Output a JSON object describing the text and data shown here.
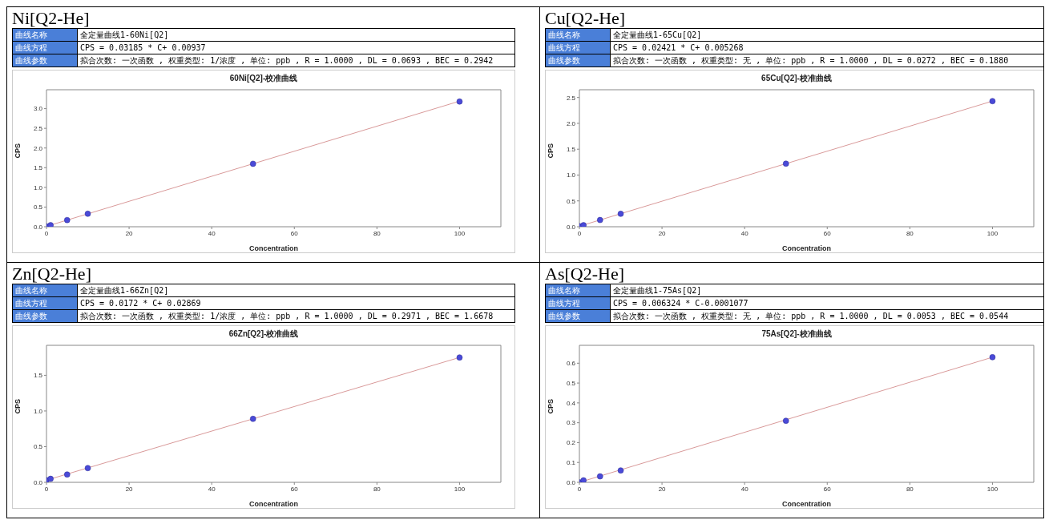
{
  "chart_data": [
    {
      "type": "scatter",
      "title": "60Ni[Q2]-校准曲线",
      "xlabel": "Concentration",
      "ylabel": "CPS",
      "annotations": [
        "Ni[Q2-He]",
        "曲线名称",
        "全定量曲线1-60Ni[Q2]",
        "曲线方程",
        "CPS = 0.03185 * C+ 0.00937",
        "曲线参数",
        "拟合次数: 一次函数 , 权重类型: 1/浓度 , 单位: ppb , R = 1.0000 , DL = 0.0693 , BEC = 0.2942"
      ],
      "xlim": [
        0,
        110
      ],
      "xticks": [
        0,
        20,
        40,
        60,
        80,
        100
      ],
      "ylim": [
        0,
        3.48
      ],
      "yticks": [
        {
          "value": 0,
          "label": "0.0"
        },
        {
          "value": 0.5,
          "label": "0.5"
        },
        {
          "value": 1,
          "label": "1.0"
        },
        {
          "value": 1.5,
          "label": "1.5"
        },
        {
          "value": 2,
          "label": "2.0"
        },
        {
          "value": 2.5,
          "label": "2.5"
        },
        {
          "value": 3,
          "label": "3.0"
        }
      ],
      "grid": false,
      "legend": false,
      "series": [
        {
          "type": "line",
          "color": "#d99a9a",
          "x": [
            0,
            100
          ],
          "values": [
            0.01,
            3.19
          ]
        },
        {
          "marker": "circle",
          "color": "#4a4ad8",
          "x": [
            0,
            1,
            5,
            10,
            50,
            100
          ],
          "values": [
            0.01,
            0.04,
            0.17,
            0.33,
            1.6,
            3.18
          ]
        }
      ]
    },
    {
      "type": "scatter",
      "title": "65Cu[Q2]-校准曲线",
      "xlabel": "Concentration",
      "ylabel": "CPS",
      "annotations": [
        "Cu[Q2-He]",
        "曲线名称",
        "全定量曲线1-65Cu[Q2]",
        "曲线方程",
        "CPS = 0.02421 * C+ 0.005268",
        "曲线参数",
        "拟合次数: 一次函数 , 权重类型: 无 , 单位: ppb , R = 1.0000 , DL = 0.0272 , BEC = 0.1880"
      ],
      "xlim": [
        0,
        110
      ],
      "xticks": [
        0,
        20,
        40,
        60,
        80,
        100
      ],
      "ylim": [
        0,
        2.65
      ],
      "yticks": [
        {
          "value": 0,
          "label": "0.0"
        },
        {
          "value": 0.5,
          "label": "0.5"
        },
        {
          "value": 1,
          "label": "1.0"
        },
        {
          "value": 1.5,
          "label": "1.5"
        },
        {
          "value": 2,
          "label": "2.0"
        },
        {
          "value": 2.5,
          "label": "2.5"
        }
      ],
      "grid": false,
      "legend": false,
      "series": [
        {
          "type": "line",
          "color": "#d99a9a",
          "x": [
            0,
            100
          ],
          "values": [
            0.01,
            2.43
          ]
        },
        {
          "marker": "circle",
          "color": "#4a4ad8",
          "x": [
            0,
            1,
            5,
            10,
            50,
            100
          ],
          "values": [
            0.01,
            0.03,
            0.13,
            0.25,
            1.22,
            2.43
          ]
        }
      ]
    },
    {
      "type": "scatter",
      "title": "66Zn[Q2]-校准曲线",
      "xlabel": "Concentration",
      "ylabel": "CPS",
      "annotations": [
        "Zn[Q2-He]",
        "曲线名称",
        "全定量曲线1-66Zn[Q2]",
        "曲线方程",
        "CPS = 0.0172 * C+ 0.02869",
        "曲线参数",
        "拟合次数: 一次函数 , 权重类型: 1/浓度 , 单位: ppb , R = 1.0000 , DL = 0.2971 , BEC = 1.6678"
      ],
      "xlim": [
        0,
        110
      ],
      "xticks": [
        0,
        20,
        40,
        60,
        80,
        100
      ],
      "ylim": [
        0,
        1.92
      ],
      "yticks": [
        {
          "value": 0,
          "label": "0.0"
        },
        {
          "value": 0.5,
          "label": "0.5"
        },
        {
          "value": 1,
          "label": "1.0"
        },
        {
          "value": 1.5,
          "label": "1.5"
        }
      ],
      "grid": false,
      "legend": false,
      "series": [
        {
          "type": "line",
          "color": "#d99a9a",
          "x": [
            0,
            100
          ],
          "values": [
            0.03,
            1.75
          ]
        },
        {
          "marker": "circle",
          "color": "#4a4ad8",
          "x": [
            0,
            1,
            5,
            10,
            50,
            100
          ],
          "values": [
            0.03,
            0.05,
            0.11,
            0.2,
            0.89,
            1.75
          ]
        }
      ]
    },
    {
      "type": "scatter",
      "title": "75As[Q2]-校准曲线",
      "xlabel": "Concentration",
      "ylabel": "CPS",
      "annotations": [
        "As[Q2-He]",
        "曲线名称",
        "全定量曲线1-75As[Q2]",
        "曲线方程",
        "CPS = 0.006324 * C-0.0001077",
        "曲线参数",
        "拟合次数: 一次函数 , 权重类型: 无 , 单位: ppb , R = 1.0000 , DL = 0.0053 , BEC = 0.0544"
      ],
      "xlim": [
        0,
        110
      ],
      "xticks": [
        0,
        20,
        40,
        60,
        80,
        100
      ],
      "ylim": [
        0,
        0.69
      ],
      "yticks": [
        {
          "value": 0,
          "label": "0.0"
        },
        {
          "value": 0.1,
          "label": "0.1"
        },
        {
          "value": 0.2,
          "label": "0.2"
        },
        {
          "value": 0.3,
          "label": "0.3"
        },
        {
          "value": 0.4,
          "label": "0.4"
        },
        {
          "value": 0.5,
          "label": "0.5"
        },
        {
          "value": 0.6,
          "label": "0.6"
        }
      ],
      "grid": false,
      "legend": false,
      "series": [
        {
          "type": "line",
          "color": "#d99a9a",
          "x": [
            0,
            100
          ],
          "values": [
            0,
            0.63
          ]
        },
        {
          "marker": "circle",
          "color": "#4a4ad8",
          "x": [
            0,
            1,
            5,
            10,
            50,
            100
          ],
          "values": [
            0,
            0.01,
            0.03,
            0.06,
            0.31,
            0.63
          ]
        }
      ]
    }
  ]
}
